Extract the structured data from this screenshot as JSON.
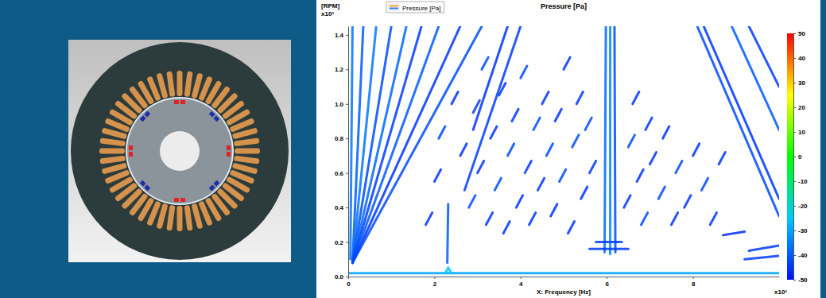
{
  "chart_data": {
    "type": "spectrogram",
    "title": "Pressure [Pa]",
    "legend_title": "Pressure [Pa]",
    "legend": "top-left",
    "y_label": "[RPM]",
    "y_multiplier": "x10³",
    "x_label": "X: Frequency [Hz]",
    "x_multiplier": "x10³",
    "xlim": [
      0,
      10
    ],
    "ylim": [
      0,
      1.45
    ],
    "xticks": [
      0,
      2,
      4,
      6,
      8
    ],
    "yticks": [
      {
        "value": 0,
        "label": "0.0"
      },
      0.2,
      0.4,
      0.6,
      0.8,
      {
        "value": 1,
        "label": "1.0"
      },
      1.2,
      1.4
    ],
    "grid": false,
    "colorbar": {
      "range": [
        -50,
        50
      ],
      "ticks": [
        50,
        40,
        30,
        20,
        10,
        0,
        -10,
        -20,
        -30,
        -40,
        -50
      ]
    },
    "series": [
      {
        "x": [
          0.05,
          0.1
        ],
        "values": [
          0.1,
          1.45
        ],
        "pressure": -36
      },
      {
        "x": [
          0.1,
          0.35
        ],
        "values": [
          0.08,
          1.45
        ],
        "pressure": -40
      },
      {
        "x": [
          0.1,
          0.65
        ],
        "values": [
          0.08,
          1.45
        ],
        "pressure": -36
      },
      {
        "x": [
          0.1,
          1.0
        ],
        "values": [
          0.08,
          1.45
        ],
        "pressure": -42
      },
      {
        "x": [
          0.1,
          1.35
        ],
        "values": [
          0.08,
          1.45
        ],
        "pressure": -38
      },
      {
        "x": [
          0.1,
          1.7
        ],
        "values": [
          0.08,
          1.45
        ],
        "pressure": -44
      },
      {
        "x": [
          0.1,
          2.1
        ],
        "values": [
          0.08,
          1.45
        ],
        "pressure": -40
      },
      {
        "x": [
          0.1,
          2.6
        ],
        "values": [
          0.08,
          1.45
        ],
        "pressure": -45
      },
      {
        "x": [
          0.1,
          3.1
        ],
        "values": [
          0.08,
          1.45
        ],
        "pressure": -42
      },
      {
        "x": [
          4.0,
          2.7
        ],
        "values": [
          1.45,
          0.5
        ],
        "pressure": -44
      },
      {
        "x": [
          3.7,
          2.9
        ],
        "values": [
          1.45,
          0.85
        ],
        "pressure": -45
      },
      {
        "x": [
          2.3,
          2.32
        ],
        "values": [
          0.08,
          0.42
        ],
        "pressure": -40
      },
      {
        "x": [
          0,
          10
        ],
        "values": [
          0.02,
          0.02
        ],
        "pressure": -30
      },
      {
        "x": [
          2.25,
          2.32,
          2.4
        ],
        "values": [
          0.02,
          0.05,
          0.02
        ],
        "pressure": -25
      },
      {
        "x": [
          5.95,
          5.98
        ],
        "values": [
          0.14,
          1.45
        ],
        "pressure": -38
      },
      {
        "x": [
          6.08,
          6.08
        ],
        "values": [
          0.13,
          1.45
        ],
        "pressure": -34
      },
      {
        "x": [
          6.2,
          6.18
        ],
        "values": [
          0.14,
          1.45
        ],
        "pressure": -42
      },
      {
        "x": [
          5.6,
          6.5
        ],
        "values": [
          0.16,
          0.16
        ],
        "pressure": -44
      },
      {
        "x": [
          5.75,
          6.35
        ],
        "values": [
          0.2,
          0.2
        ],
        "pressure": -44
      },
      {
        "x": [
          8.1,
          10
        ],
        "values": [
          1.45,
          0.35
        ],
        "pressure": -42
      },
      {
        "x": [
          8.25,
          10
        ],
        "values": [
          1.45,
          0.45
        ],
        "pressure": -45
      },
      {
        "x": [
          8.9,
          10
        ],
        "values": [
          1.45,
          0.85
        ],
        "pressure": -40
      },
      {
        "x": [
          9.3,
          10
        ],
        "values": [
          1.45,
          1.1
        ],
        "pressure": -44
      },
      {
        "x": [
          9.2,
          10
        ],
        "values": [
          0.1,
          0.12
        ],
        "pressure": -44
      },
      {
        "x": [
          9.3,
          10
        ],
        "values": [
          0.15,
          0.18
        ],
        "pressure": -44
      },
      {
        "x": [
          8.7,
          9.2
        ],
        "values": [
          0.24,
          0.26
        ],
        "pressure": -46
      },
      {
        "x": [
          1.8,
          1.95
        ],
        "values": [
          0.3,
          0.37
        ],
        "pressure": -45
      },
      {
        "x": [
          2.0,
          2.15
        ],
        "values": [
          0.55,
          0.62
        ],
        "pressure": -45
      },
      {
        "x": [
          2.1,
          2.25
        ],
        "values": [
          0.8,
          0.87
        ],
        "pressure": -42
      },
      {
        "x": [
          2.4,
          2.55
        ],
        "values": [
          1.0,
          1.07
        ],
        "pressure": -45
      },
      {
        "x": [
          2.6,
          2.75
        ],
        "values": [
          0.7,
          0.77
        ],
        "pressure": -45
      },
      {
        "x": [
          2.8,
          2.95
        ],
        "values": [
          0.4,
          0.47
        ],
        "pressure": -42
      },
      {
        "x": [
          2.9,
          3.05
        ],
        "values": [
          0.95,
          1.02
        ],
        "pressure": -45
      },
      {
        "x": [
          3.0,
          3.15
        ],
        "values": [
          0.6,
          0.67
        ],
        "pressure": -45
      },
      {
        "x": [
          3.1,
          3.25
        ],
        "values": [
          1.2,
          1.27
        ],
        "pressure": -42
      },
      {
        "x": [
          3.2,
          3.35
        ],
        "values": [
          0.3,
          0.37
        ],
        "pressure": -45
      },
      {
        "x": [
          3.3,
          3.45
        ],
        "values": [
          0.8,
          0.87
        ],
        "pressure": -45
      },
      {
        "x": [
          3.4,
          3.55
        ],
        "values": [
          0.5,
          0.57
        ],
        "pressure": -42
      },
      {
        "x": [
          3.5,
          3.65
        ],
        "values": [
          1.05,
          1.12
        ],
        "pressure": -45
      },
      {
        "x": [
          3.6,
          3.75
        ],
        "values": [
          0.25,
          0.32
        ],
        "pressure": -45
      },
      {
        "x": [
          3.7,
          3.85
        ],
        "values": [
          0.7,
          0.77
        ],
        "pressure": -42
      },
      {
        "x": [
          3.8,
          3.95
        ],
        "values": [
          0.9,
          0.97
        ],
        "pressure": -45
      },
      {
        "x": [
          3.9,
          4.05
        ],
        "values": [
          0.4,
          0.47
        ],
        "pressure": -45
      },
      {
        "x": [
          4.0,
          4.15
        ],
        "values": [
          1.15,
          1.22
        ],
        "pressure": -42
      },
      {
        "x": [
          4.1,
          4.25
        ],
        "values": [
          0.6,
          0.67
        ],
        "pressure": -45
      },
      {
        "x": [
          4.2,
          4.35
        ],
        "values": [
          0.3,
          0.37
        ],
        "pressure": -45
      },
      {
        "x": [
          4.3,
          4.45
        ],
        "values": [
          0.85,
          0.92
        ],
        "pressure": -42
      },
      {
        "x": [
          4.4,
          4.55
        ],
        "values": [
          0.5,
          0.57
        ],
        "pressure": -45
      },
      {
        "x": [
          4.5,
          4.65
        ],
        "values": [
          1.0,
          1.07
        ],
        "pressure": -45
      },
      {
        "x": [
          4.6,
          4.75
        ],
        "values": [
          0.7,
          0.77
        ],
        "pressure": -42
      },
      {
        "x": [
          4.7,
          4.85
        ],
        "values": [
          0.35,
          0.42
        ],
        "pressure": -45
      },
      {
        "x": [
          4.8,
          4.95
        ],
        "values": [
          0.9,
          0.97
        ],
        "pressure": -45
      },
      {
        "x": [
          4.9,
          5.05
        ],
        "values": [
          0.55,
          0.62
        ],
        "pressure": -42
      },
      {
        "x": [
          5.0,
          5.15
        ],
        "values": [
          1.2,
          1.27
        ],
        "pressure": -45
      },
      {
        "x": [
          5.1,
          5.25
        ],
        "values": [
          0.25,
          0.32
        ],
        "pressure": -45
      },
      {
        "x": [
          5.2,
          5.35
        ],
        "values": [
          0.75,
          0.82
        ],
        "pressure": -42
      },
      {
        "x": [
          5.3,
          5.45
        ],
        "values": [
          1.0,
          1.07
        ],
        "pressure": -45
      },
      {
        "x": [
          5.4,
          5.55
        ],
        "values": [
          0.45,
          0.52
        ],
        "pressure": -45
      },
      {
        "x": [
          5.5,
          5.65
        ],
        "values": [
          0.85,
          0.92
        ],
        "pressure": -42
      },
      {
        "x": [
          5.6,
          5.75
        ],
        "values": [
          0.6,
          0.67
        ],
        "pressure": -45
      },
      {
        "x": [
          6.4,
          6.55
        ],
        "values": [
          0.4,
          0.47
        ],
        "pressure": -45
      },
      {
        "x": [
          6.5,
          6.65
        ],
        "values": [
          0.75,
          0.82
        ],
        "pressure": -42
      },
      {
        "x": [
          6.6,
          6.75
        ],
        "values": [
          1.0,
          1.07
        ],
        "pressure": -45
      },
      {
        "x": [
          6.7,
          6.85
        ],
        "values": [
          0.55,
          0.62
        ],
        "pressure": -45
      },
      {
        "x": [
          6.8,
          6.95
        ],
        "values": [
          0.3,
          0.37
        ],
        "pressure": -42
      },
      {
        "x": [
          6.9,
          7.05
        ],
        "values": [
          0.85,
          0.92
        ],
        "pressure": -45
      },
      {
        "x": [
          7.0,
          7.15
        ],
        "values": [
          0.65,
          0.72
        ],
        "pressure": -45
      },
      {
        "x": [
          7.2,
          7.35
        ],
        "values": [
          0.45,
          0.52
        ],
        "pressure": -42
      },
      {
        "x": [
          7.3,
          7.45
        ],
        "values": [
          0.8,
          0.87
        ],
        "pressure": -45
      },
      {
        "x": [
          7.5,
          7.65
        ],
        "values": [
          0.3,
          0.37
        ],
        "pressure": -45
      },
      {
        "x": [
          7.6,
          7.75
        ],
        "values": [
          0.6,
          0.67
        ],
        "pressure": -42
      },
      {
        "x": [
          7.8,
          7.95
        ],
        "values": [
          0.4,
          0.47
        ],
        "pressure": -45
      },
      {
        "x": [
          8.0,
          8.15
        ],
        "values": [
          0.7,
          0.77
        ],
        "pressure": -45
      },
      {
        "x": [
          8.2,
          8.35
        ],
        "values": [
          0.5,
          0.57
        ],
        "pressure": -42
      },
      {
        "x": [
          8.4,
          8.55
        ],
        "values": [
          0.3,
          0.37
        ],
        "pressure": -45
      },
      {
        "x": [
          8.6,
          8.75
        ],
        "values": [
          0.65,
          0.72
        ],
        "pressure": -45
      }
    ]
  }
}
